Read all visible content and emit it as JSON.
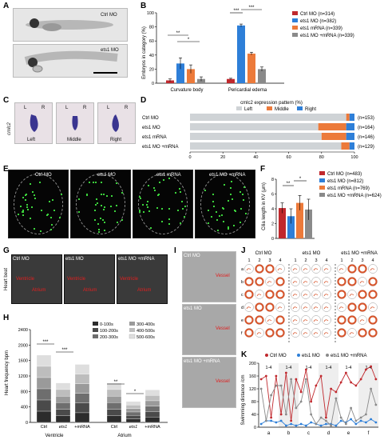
{
  "panels": {
    "A": {
      "letter": "A",
      "labels": [
        "Ctrl MO",
        "ets1 MO"
      ]
    },
    "B": {
      "letter": "B",
      "ylabel": "Embryos in category (%)",
      "groups": [
        "Curvature body",
        "Pericardial edema"
      ],
      "legend": [
        "Ctrl MO (n=314)",
        "ets1 MO (n=382)",
        "ets1 mRNA (n=339)",
        "ets1 MO +mRNA (n=339)"
      ],
      "sig": [
        "**",
        "*",
        "***",
        "***"
      ]
    },
    "C": {
      "letter": "C",
      "gene": "cmlc2",
      "side_labels": [
        "L",
        "R"
      ],
      "captions": [
        "Left",
        "Middle",
        "Right"
      ]
    },
    "D": {
      "letter": "D",
      "title": "cmlc2 expression pattern (%)",
      "legend": [
        "Left",
        "Middle",
        "Right"
      ],
      "rows": [
        {
          "label": "Ctrl MO",
          "n": "(n=153)"
        },
        {
          "label": "ets1 MO",
          "n": "(n=164)"
        },
        {
          "label": "ets1 mRNA",
          "n": "(n=146)"
        },
        {
          "label": "ets1 MO +mRNA",
          "n": "(n=129)"
        }
      ]
    },
    "E": {
      "letter": "E",
      "labels": [
        "Ctrl MO",
        "ets1 MO",
        "ets1 mRNA",
        "ets1 MO +mRNA"
      ]
    },
    "F": {
      "letter": "F",
      "ylabel": "Cilia length in KV (μm)",
      "legend": [
        "Ctrl MO (n=483)",
        "ets1 MO (n=812)",
        "ets1 mRNA (n=769)",
        "ets1 MO +mRNA (n=624)"
      ],
      "sig": [
        "**",
        "*"
      ]
    },
    "G": {
      "letter": "G",
      "side_label": "Heart beat",
      "labels": [
        "Ctrl MO",
        "ets1 MO",
        "ets1 MO +mRNA"
      ],
      "chamber_labels": [
        "Ventricle",
        "Atrium"
      ]
    },
    "H": {
      "letter": "H",
      "ylabel": "Heart frequency bpm",
      "groups": [
        "Ventricle",
        "Atrium"
      ],
      "sig": [
        "***",
        "***",
        "**",
        "*"
      ],
      "legend": [
        "0-100s",
        "100-200s",
        "200-300s",
        "300-400s",
        "400-500s",
        "500-600s"
      ]
    },
    "I": {
      "letter": "I",
      "labels": [
        "Ctrl MO",
        "ets1 MO",
        "ets1 MO +mRNA"
      ],
      "vessel_label": "Vessel"
    },
    "J": {
      "letter": "J",
      "groups": [
        "Ctrl MO",
        "ets1 MO",
        "ets1 MO +mRNA"
      ],
      "cols": [
        "1",
        "2",
        "3",
        "4"
      ],
      "rows": [
        "a",
        "b",
        "c",
        "d",
        "e",
        "f"
      ]
    },
    "K": {
      "letter": "K",
      "legend": [
        "Ctrl MO",
        "ets1 MO",
        "ets1 MO +mRNA"
      ],
      "ylabel": "Swimming distance /cm",
      "xcats": [
        "a",
        "b",
        "c",
        "d",
        "e",
        "f"
      ],
      "seg_label": "1-4"
    }
  },
  "chart_data": [
    {
      "panel": "B",
      "type": "bar",
      "categories": [
        "Curvature body",
        "Pericardial edema"
      ],
      "ylabel": "Embryos in category (%)",
      "ylim": [
        0,
        100
      ],
      "yticks": [
        0,
        20,
        40,
        60,
        80,
        100
      ],
      "series": [
        {
          "name": "Ctrl MO (n=314)",
          "color": "#c0282d",
          "values": [
            4,
            6
          ],
          "errors": [
            2,
            1
          ]
        },
        {
          "name": "ets1 MO (n=382)",
          "color": "#2e7fd8",
          "values": [
            28,
            82
          ],
          "errors": [
            8,
            2
          ]
        },
        {
          "name": "ets1 mRNA (n=339)",
          "color": "#ec7a3a",
          "values": [
            20,
            42
          ],
          "errors": [
            6,
            2
          ]
        },
        {
          "name": "ets1 MO +mRNA (n=339)",
          "color": "#8a8a8a",
          "values": [
            6,
            20
          ],
          "errors": [
            3,
            3
          ]
        }
      ]
    },
    {
      "panel": "D",
      "type": "bar",
      "orientation": "horizontal",
      "stacked": true,
      "categories": [
        "Ctrl MO",
        "ets1 MO",
        "ets1 mRNA",
        "ets1 MO +mRNA"
      ],
      "xlim": [
        0,
        100
      ],
      "xticks": [
        0,
        20,
        40,
        60,
        80,
        100
      ],
      "series": [
        {
          "name": "Left",
          "color": "#cfd3d6",
          "values": [
            95,
            78,
            80,
            92
          ]
        },
        {
          "name": "Middle",
          "color": "#ec7a3a",
          "values": [
            2,
            17,
            15,
            5
          ]
        },
        {
          "name": "Right",
          "color": "#2e7fd8",
          "values": [
            3,
            5,
            5,
            3
          ]
        }
      ]
    },
    {
      "panel": "F",
      "type": "bar",
      "ylabel": "Cilia length in KV (μm)",
      "ylim": [
        0,
        8
      ],
      "yticks": [
        0,
        2,
        4,
        6,
        8
      ],
      "categories": [
        "Ctrl MO",
        "ets1 MO",
        "ets1 mRNA",
        "ets1 MO +mRNA"
      ],
      "colors": [
        "#c0282d",
        "#2e7fd8",
        "#ec7a3a",
        "#8a8a8a"
      ],
      "values": [
        4.1,
        3.0,
        4.8,
        3.9
      ],
      "errors": [
        0.7,
        1.0,
        1.0,
        1.4
      ]
    },
    {
      "panel": "H",
      "type": "bar",
      "stacked": true,
      "ylabel": "Heart frequency bpm",
      "ylim": [
        0,
        2400
      ],
      "yticks": [
        0,
        400,
        800,
        1200,
        1600,
        2000,
        2400
      ],
      "categories": [
        "Ctrl",
        "ets1",
        "+mRNA",
        "Ctrl",
        "ets1",
        "+mRNA"
      ],
      "groups": [
        "Ventricle",
        "Atrium"
      ],
      "series": [
        {
          "name": "0-100s",
          "color": "#2c2c2c",
          "values": [
            290,
            170,
            250,
            170,
            90,
            140
          ]
        },
        {
          "name": "100-200s",
          "color": "#4a4a4a",
          "values": [
            290,
            170,
            250,
            170,
            90,
            140
          ]
        },
        {
          "name": "200-300s",
          "color": "#6e6e6e",
          "values": [
            290,
            170,
            250,
            170,
            90,
            140
          ]
        },
        {
          "name": "300-400s",
          "color": "#9a9a9a",
          "values": [
            290,
            170,
            250,
            170,
            90,
            140
          ]
        },
        {
          "name": "400-500s",
          "color": "#bdbdbd",
          "values": [
            290,
            170,
            250,
            170,
            90,
            140
          ]
        },
        {
          "name": "500-600s",
          "color": "#dedede",
          "values": [
            290,
            170,
            250,
            170,
            90,
            140
          ]
        }
      ]
    },
    {
      "panel": "K",
      "type": "line",
      "ylabel": "Swimming distance /cm",
      "ylim": [
        0,
        200
      ],
      "yticks": [
        0,
        40,
        80,
        120,
        160,
        200
      ],
      "xcats": [
        "a",
        "b",
        "c",
        "d",
        "e",
        "f"
      ],
      "series": [
        {
          "name": "Ctrl MO",
          "color": "#c0282d",
          "values": [
            150,
            160,
            30,
            160,
            40,
            170,
            20,
            150,
            110,
            180,
            80,
            130,
            160,
            30,
            120,
            110,
            140,
            170,
            140,
            130,
            150,
            180,
            190,
            150
          ]
        },
        {
          "name": "ets1 MO",
          "color": "#2e7fd8",
          "values": [
            10,
            20,
            20,
            15,
            20,
            5,
            10,
            5,
            10,
            5,
            15,
            10,
            5,
            10,
            10,
            5,
            20,
            15,
            25,
            10,
            20,
            15,
            25,
            15
          ]
        },
        {
          "name": "ets1 MO +mRNA",
          "color": "#8a8a8a",
          "values": [
            120,
            20,
            100,
            130,
            130,
            40,
            150,
            60,
            80,
            150,
            40,
            10,
            30,
            20,
            5,
            90,
            30,
            10,
            60,
            20,
            30,
            40,
            120,
            70
          ]
        }
      ]
    }
  ]
}
